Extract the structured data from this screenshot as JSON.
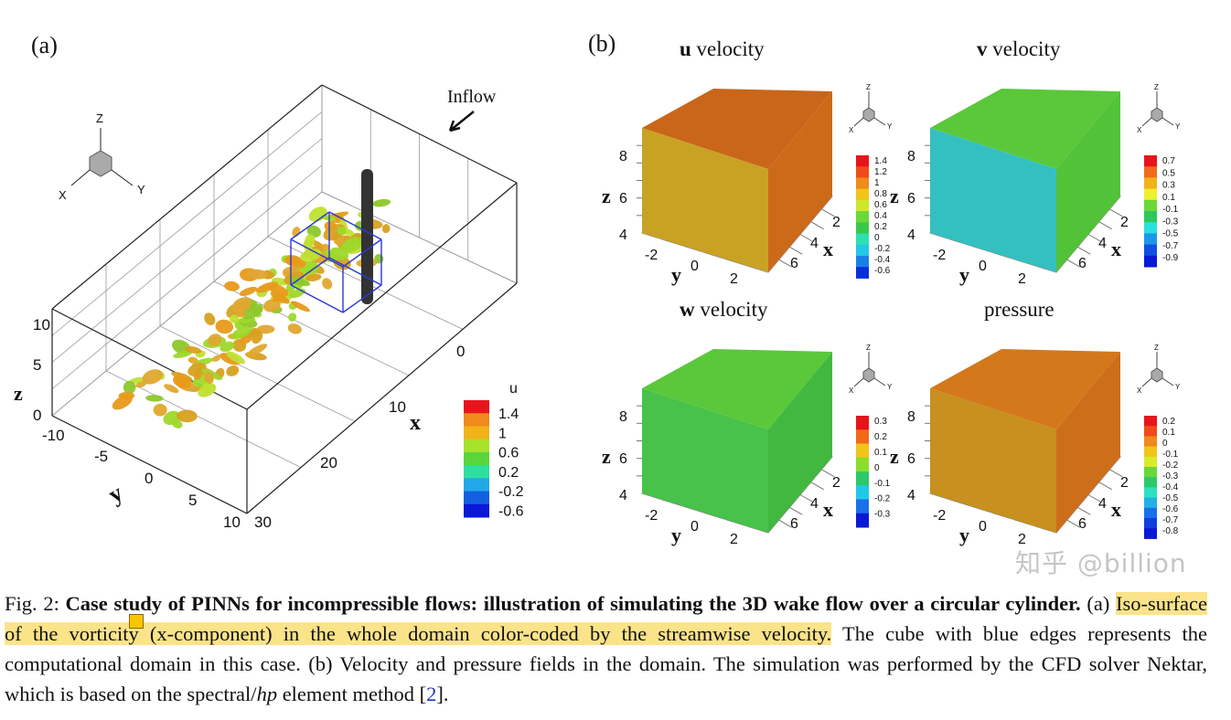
{
  "panel_a": {
    "label": "(a)",
    "inflow_label": "Inflow",
    "triad": {
      "z": "Z",
      "x": "X",
      "y": "Y"
    },
    "axes": {
      "z_label": "z",
      "z_ticks": [
        "0",
        "5",
        "10"
      ],
      "y_label": "y",
      "y_ticks": [
        "-10",
        "-5",
        "0",
        "5",
        "10"
      ],
      "x_label": "x",
      "x_ticks": [
        "0",
        "10",
        "20",
        "30"
      ]
    },
    "colorbar": {
      "title": "u",
      "labels": [
        "1.4",
        "1",
        "0.6",
        "0.2",
        "-0.2",
        "-0.6"
      ],
      "colors": [
        "#e8141c",
        "#f08a1a",
        "#f2b21a",
        "#a8e22a",
        "#5ad63a",
        "#2ee0a0",
        "#22a8e8",
        "#1060e0",
        "#0a18d8"
      ]
    }
  },
  "panel_b": {
    "label": "(b)",
    "plots": [
      {
        "title_bold": "u",
        "title_rest": " velocity",
        "face_colors": [
          "#c9661a",
          "#c9a224",
          "#cd6a1a"
        ],
        "colorbar": {
          "labels": [
            "1.4",
            "1.2",
            "1",
            "0.8",
            "0.6",
            "0.4",
            "0.2",
            "0",
            "-0.2",
            "-0.4",
            "-0.6"
          ],
          "colors": [
            "#e8141c",
            "#f04a1a",
            "#f08a1a",
            "#f2c41a",
            "#cde82a",
            "#6ad83a",
            "#3ac84a",
            "#2ee0b0",
            "#22c8e8",
            "#1a80e8",
            "#0a30d8"
          ]
        }
      },
      {
        "title_bold": "v",
        "title_rest": " velocity",
        "face_colors": [
          "#5ac83a",
          "#34c0c0",
          "#52c238"
        ],
        "colorbar": {
          "labels": [
            "0.7",
            "0.5",
            "0.3",
            "0.1",
            "-0.1",
            "-0.3",
            "-0.5",
            "-0.7",
            "-0.9"
          ],
          "colors": [
            "#e8141c",
            "#f06a1a",
            "#f2b21a",
            "#eef02a",
            "#6ad83a",
            "#2ec85a",
            "#28e0e0",
            "#1a98e8",
            "#1050e0",
            "#0a18d8"
          ]
        }
      },
      {
        "title_bold": "w",
        "title_rest": " velocity",
        "face_colors": [
          "#5ac83a",
          "#48c24a",
          "#42b840"
        ],
        "colorbar": {
          "labels": [
            "0.3",
            "0.2",
            "0.1",
            "0",
            "-0.1",
            "-0.2",
            "-0.3"
          ],
          "colors": [
            "#e8141c",
            "#f06a1a",
            "#f2c41a",
            "#8ade2a",
            "#2ec86a",
            "#22c8e8",
            "#1a70e8",
            "#0a18d8"
          ]
        }
      },
      {
        "title_bold": "",
        "title_rest": "pressure",
        "face_colors": [
          "#d4781c",
          "#c8901e",
          "#cc6e1a"
        ],
        "colorbar": {
          "labels": [
            "0.2",
            "0.1",
            "0",
            "-0.1",
            "-0.2",
            "-0.3",
            "-0.4",
            "-0.5",
            "-0.6",
            "-0.7",
            "-0.8"
          ],
          "colors": [
            "#e8141c",
            "#f04a1a",
            "#f08a1a",
            "#f2c41a",
            "#d8ec2a",
            "#6ad83a",
            "#2ec86a",
            "#2ee0c0",
            "#22b0e8",
            "#1a70e8",
            "#1040e0",
            "#0a18d8"
          ]
        }
      }
    ],
    "axes": {
      "z_label": "z",
      "z_ticks": [
        "8",
        "6",
        "4"
      ],
      "y_label": "y",
      "y_ticks": [
        "-2",
        "0",
        "2"
      ],
      "x_label": "x",
      "x_ticks": [
        "2",
        "4",
        "6"
      ]
    },
    "triad": {
      "z": "Z",
      "x": "X",
      "y": "Y"
    }
  },
  "caption": {
    "prefix": "Fig. 2: ",
    "bold": "Case study of PINNs for incompressible flows: illustration of simulating the 3D wake flow over a circular cylinder.",
    "part_a_label": " (a) ",
    "highlighted": "Iso-surface of the vorticity (x-component) in the whole domain color-coded by the streamwise velocity.",
    "rest1": " The cube with blue edges represents the computational domain in this case. (b) Velocity and pressure fields in the domain. The simulation was performed by the CFD solver Nektar, which is based on the spectral/",
    "hp": "hp",
    "rest2": " element method [",
    "ref": "2",
    "rest3": "]."
  },
  "watermark": "知乎 @billion",
  "highlight_color": "#fbe38a"
}
